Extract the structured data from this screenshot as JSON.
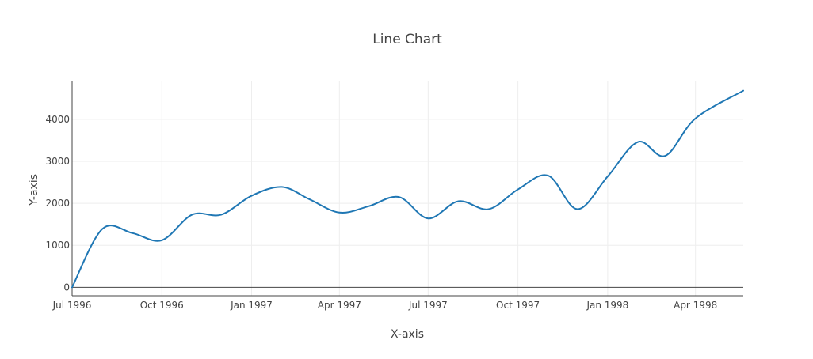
{
  "chart_data": {
    "type": "line",
    "title": "Line Chart",
    "xlabel": "X-axis",
    "ylabel": "Y-axis",
    "x_type": "date",
    "xlim": [
      "1996-07-01",
      "1998-05-20"
    ],
    "ylim": [
      -200,
      4900
    ],
    "grid": true,
    "x_ticks": [
      {
        "value": "1996-07-01",
        "label": "Jul 1996"
      },
      {
        "value": "1996-10-01",
        "label": "Oct 1996"
      },
      {
        "value": "1997-01-01",
        "label": "Jan 1997"
      },
      {
        "value": "1997-04-01",
        "label": "Apr 1997"
      },
      {
        "value": "1997-07-01",
        "label": "Jul 1997"
      },
      {
        "value": "1997-10-01",
        "label": "Oct 1997"
      },
      {
        "value": "1998-01-01",
        "label": "Jan 1998"
      },
      {
        "value": "1998-04-01",
        "label": "Apr 1998"
      }
    ],
    "y_ticks": [
      {
        "value": 0,
        "label": "0"
      },
      {
        "value": 1000,
        "label": "1000"
      },
      {
        "value": 2000,
        "label": "2000"
      },
      {
        "value": 3000,
        "label": "3000"
      },
      {
        "value": 4000,
        "label": "4000"
      }
    ],
    "series": [
      {
        "color": "#1f77b4",
        "x": [
          "1996-07-01",
          "1996-08-01",
          "1996-09-01",
          "1996-10-01",
          "1996-11-01",
          "1996-12-01",
          "1997-01-01",
          "1997-02-01",
          "1997-03-01",
          "1997-04-01",
          "1997-05-01",
          "1997-06-01",
          "1997-07-01",
          "1997-08-01",
          "1997-09-01",
          "1997-10-01",
          "1997-11-01",
          "1997-12-01",
          "1998-01-01",
          "1998-02-01",
          "1998-03-01",
          "1998-04-01",
          "1998-05-20"
        ],
        "y": [
          0,
          1390,
          1290,
          1120,
          1730,
          1730,
          2180,
          2390,
          2100,
          1780,
          1930,
          2150,
          1640,
          2050,
          1860,
          2330,
          2660,
          1860,
          2640,
          3460,
          3130,
          4020,
          4680
        ]
      }
    ]
  }
}
